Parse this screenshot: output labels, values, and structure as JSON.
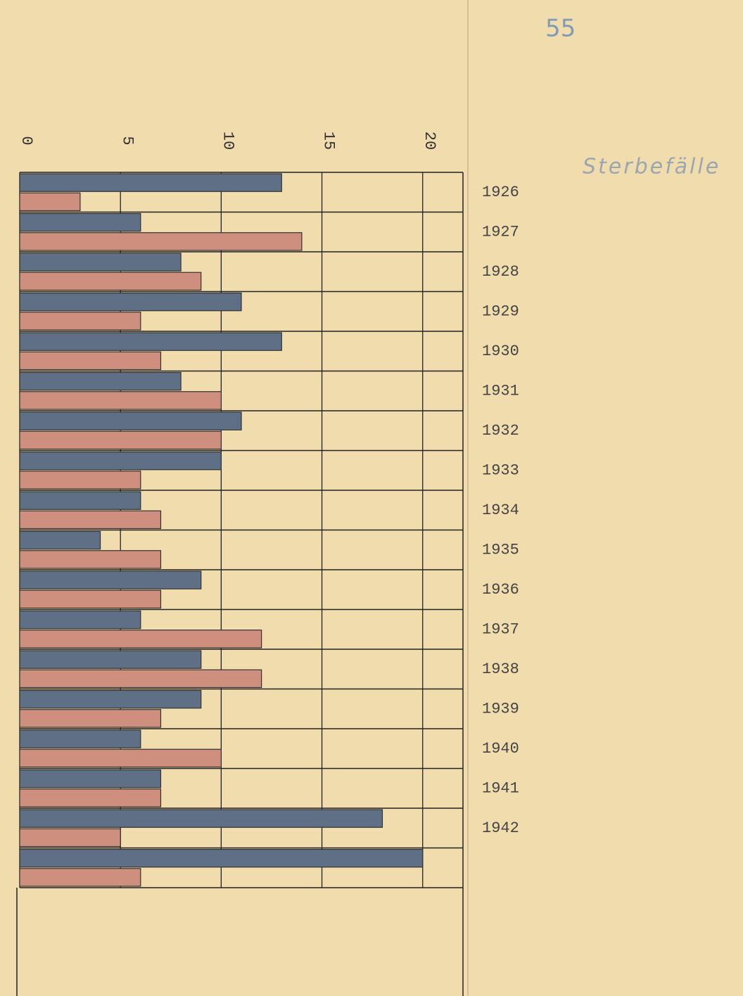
{
  "chart_data": {
    "type": "hbar",
    "title": "Sterbefälle",
    "annotation": "55",
    "categories": [
      "1926",
      "1927",
      "1928",
      "1929",
      "1930",
      "1931",
      "1932",
      "1933",
      "1934",
      "1935",
      "1936",
      "1937",
      "1938",
      "1939",
      "1940",
      "1941",
      "1942",
      null
    ],
    "series": [
      {
        "color": "#5f6f86",
        "values": [
          13,
          6,
          8,
          11,
          13,
          8,
          11,
          10,
          6,
          4,
          9,
          6,
          9,
          9,
          6,
          7,
          18,
          20
        ]
      },
      {
        "color": "#cf8f7e",
        "values": [
          3,
          14,
          9,
          6,
          7,
          10,
          10,
          6,
          7,
          7,
          7,
          12,
          12,
          7,
          10,
          7,
          5,
          6
        ]
      }
    ],
    "xlim": [
      0,
      22
    ],
    "xticks": [
      0,
      5,
      10,
      15,
      20
    ],
    "grid": true
  }
}
